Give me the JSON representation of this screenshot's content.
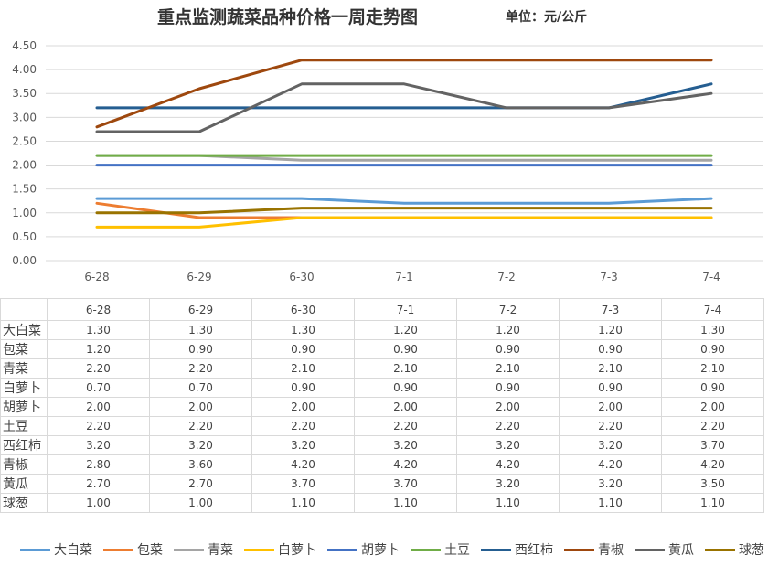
{
  "chart_data": {
    "type": "line",
    "title": "重点监测蔬菜品种价格一周走势图",
    "unit_label": "单位：元/公斤",
    "categories": [
      "6-28",
      "6-29",
      "6-30",
      "7-1",
      "7-2",
      "7-3",
      "7-4"
    ],
    "ylim": [
      0,
      4.5
    ],
    "yticks": [
      "0.00",
      "0.50",
      "1.00",
      "1.50",
      "2.00",
      "2.50",
      "3.00",
      "3.50",
      "4.00",
      "4.50"
    ],
    "grid": true,
    "legend_position": "bottom",
    "series": [
      {
        "name": "大白菜",
        "color": "#5b9bd5",
        "values": [
          1.3,
          1.3,
          1.3,
          1.2,
          1.2,
          1.2,
          1.3
        ],
        "labels": [
          "1.30",
          "1.30",
          "1.30",
          "1.20",
          "1.20",
          "1.20",
          "1.30"
        ]
      },
      {
        "name": "包菜",
        "color": "#ed7d31",
        "values": [
          1.2,
          0.9,
          0.9,
          0.9,
          0.9,
          0.9,
          0.9
        ],
        "labels": [
          "1.20",
          "0.90",
          "0.90",
          "0.90",
          "0.90",
          "0.90",
          "0.90"
        ]
      },
      {
        "name": "青菜",
        "color": "#a5a5a5",
        "values": [
          2.2,
          2.2,
          2.1,
          2.1,
          2.1,
          2.1,
          2.1
        ],
        "labels": [
          "2.20",
          "2.20",
          "2.10",
          "2.10",
          "2.10",
          "2.10",
          "2.10"
        ]
      },
      {
        "name": "白萝卜",
        "color": "#ffc000",
        "values": [
          0.7,
          0.7,
          0.9,
          0.9,
          0.9,
          0.9,
          0.9
        ],
        "labels": [
          "0.70",
          "0.70",
          "0.90",
          "0.90",
          "0.90",
          "0.90",
          "0.90"
        ]
      },
      {
        "name": "胡萝卜",
        "color": "#4472c4",
        "values": [
          2.0,
          2.0,
          2.0,
          2.0,
          2.0,
          2.0,
          2.0
        ],
        "labels": [
          "2.00",
          "2.00",
          "2.00",
          "2.00",
          "2.00",
          "2.00",
          "2.00"
        ]
      },
      {
        "name": "土豆",
        "color": "#70ad47",
        "values": [
          2.2,
          2.2,
          2.2,
          2.2,
          2.2,
          2.2,
          2.2
        ],
        "labels": [
          "2.20",
          "2.20",
          "2.20",
          "2.20",
          "2.20",
          "2.20",
          "2.20"
        ]
      },
      {
        "name": "西红柿",
        "color": "#255e91",
        "values": [
          3.2,
          3.2,
          3.2,
          3.2,
          3.2,
          3.2,
          3.7
        ],
        "labels": [
          "3.20",
          "3.20",
          "3.20",
          "3.20",
          "3.20",
          "3.20",
          "3.70"
        ]
      },
      {
        "name": "青椒",
        "color": "#9e480e",
        "values": [
          2.8,
          3.6,
          4.2,
          4.2,
          4.2,
          4.2,
          4.2
        ],
        "labels": [
          "2.80",
          "3.60",
          "4.20",
          "4.20",
          "4.20",
          "4.20",
          "4.20"
        ]
      },
      {
        "name": "黄瓜",
        "color": "#636363",
        "values": [
          2.7,
          2.7,
          3.7,
          3.7,
          3.2,
          3.2,
          3.5
        ],
        "labels": [
          "2.70",
          "2.70",
          "3.70",
          "3.70",
          "3.20",
          "3.20",
          "3.50"
        ]
      },
      {
        "name": "球葱",
        "color": "#997300",
        "values": [
          1.0,
          1.0,
          1.1,
          1.1,
          1.1,
          1.1,
          1.1
        ],
        "labels": [
          "1.00",
          "1.00",
          "1.10",
          "1.10",
          "1.10",
          "1.10",
          "1.10"
        ]
      }
    ]
  }
}
